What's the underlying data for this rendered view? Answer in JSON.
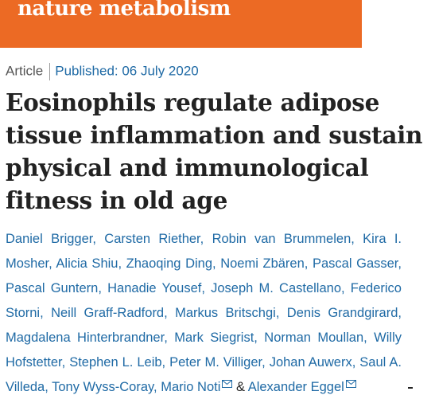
{
  "header": {
    "brand": "nature metabolism"
  },
  "article": {
    "type": "Article",
    "published": "Published: 06 July 2020",
    "title": "Eosinophils regulate adipose tissue inflammation and sustain physical and immunological fitness in old age",
    "separator": ",",
    "conjunction": "&",
    "authors": [
      {
        "name": "Daniel Brigger"
      },
      {
        "name": "Carsten Riether"
      },
      {
        "name": "Robin van Brummelen"
      },
      {
        "name": "Kira I. Mosher"
      },
      {
        "name": "Alicia Shiu"
      },
      {
        "name": "Zhaoqing Ding"
      },
      {
        "name": "Noemi Zbären"
      },
      {
        "name": "Pascal Gasser"
      },
      {
        "name": "Pascal Guntern"
      },
      {
        "name": "Hanadie Yousef"
      },
      {
        "name": "Joseph M. Castellano"
      },
      {
        "name": "Federico Storni"
      },
      {
        "name": "Neill Graff-Radford"
      },
      {
        "name": "Markus Britschgi"
      },
      {
        "name": "Denis Grandgirard"
      },
      {
        "name": "Magdalena Hinterbrandner"
      },
      {
        "name": "Mark Siegrist"
      },
      {
        "name": "Norman Moullan"
      },
      {
        "name": "Willy Hofstetter"
      },
      {
        "name": "Stephen L. Leib"
      },
      {
        "name": "Peter M. Villiger"
      },
      {
        "name": "Johan Auwerx"
      },
      {
        "name": "Saul A. Villeda"
      },
      {
        "name": "Tony Wyss-Coray"
      },
      {
        "name": "Mario Noti",
        "corresponding": true
      },
      {
        "name": "Alexander Eggel",
        "corresponding": true
      }
    ]
  }
}
